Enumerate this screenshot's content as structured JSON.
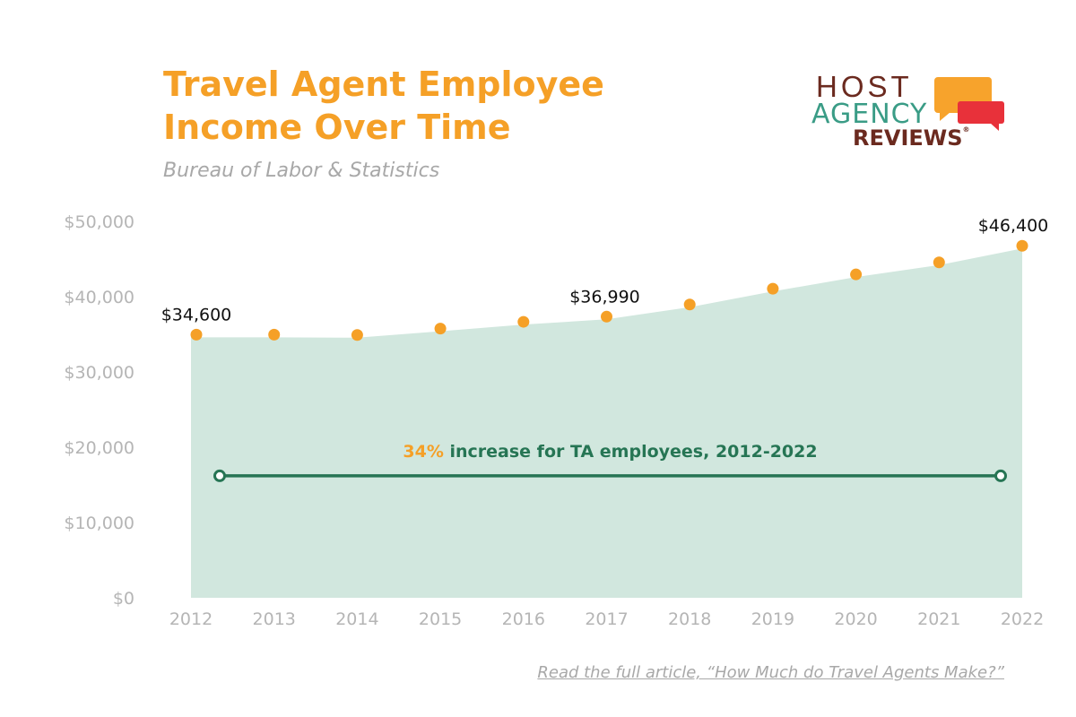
{
  "header": {
    "title_line1": "Travel Agent Employee",
    "title_line2": "Income Over Time",
    "subtitle": "Bureau of Labor & Statistics"
  },
  "logo": {
    "line1": "HOST",
    "line2": "AGENCY",
    "line3": "REVIEWS",
    "registered": "®"
  },
  "footer": {
    "link_text": "Read the full article, “How Much do Travel Agents Make?”"
  },
  "colors": {
    "accent": "#f5a027",
    "area_fill": "#d1e7de",
    "annotation_green": "#267554",
    "axis_text": "#b5b5b5"
  },
  "chart_data": {
    "type": "area",
    "x": [
      "2012",
      "2013",
      "2014",
      "2015",
      "2016",
      "2017",
      "2018",
      "2019",
      "2020",
      "2021",
      "2022"
    ],
    "series": [
      {
        "values": [
          34600,
          34600,
          34550,
          35400,
          36300,
          36990,
          38600,
          40700,
          42600,
          44200,
          46400
        ]
      }
    ],
    "ylim": [
      0,
      50000
    ],
    "yticks": [
      "$0",
      "$10,000",
      "$20,000",
      "$30,000",
      "$40,000",
      "$50,000"
    ],
    "grid": false,
    "data_labels": [
      {
        "index": 0,
        "text": "$34,600"
      },
      {
        "index": 5,
        "text": "$36,990"
      },
      {
        "index": 10,
        "text": "$46,400"
      }
    ],
    "annotation": {
      "highlight": "34%",
      "text": " increase for TA employees, 2012-2022",
      "value": 16200,
      "from_index": 0,
      "to_index": 10
    }
  }
}
